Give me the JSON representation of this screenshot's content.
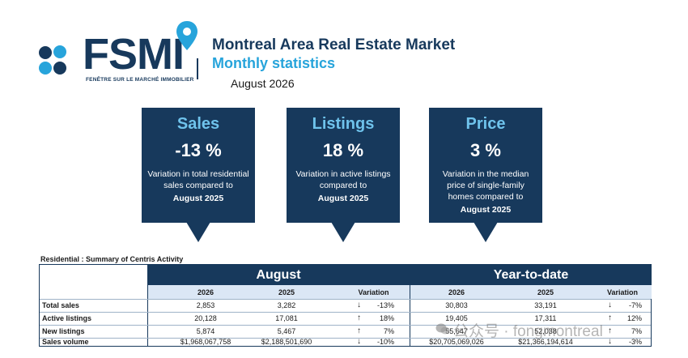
{
  "header": {
    "logo_text": "FSMI",
    "logo_caption": "FENÊTRE SUR LE MARCHÉ IMMOBILIER",
    "title": "Montreal Area Real Estate Market",
    "subtitle": "Monthly statistics",
    "period": "August 2026"
  },
  "colors": {
    "navy": "#17395c",
    "accent_blue": "#27a4db",
    "light_band": "#dbe7f5"
  },
  "kpis": [
    {
      "name": "Sales",
      "value": "-13 %",
      "desc": "Variation in total residential sales compared to",
      "ref": "August 2025"
    },
    {
      "name": "Listings",
      "value": "18 %",
      "desc": "Variation in active listings compared to",
      "ref": "August 2025"
    },
    {
      "name": "Price",
      "value": "3 %",
      "desc": "Variation in the median price of single-family homes compared to",
      "ref": "August 2025"
    }
  ],
  "table": {
    "caption": "Residential : Summary of Centris Activity",
    "group_monthly": "August",
    "group_ytd": "Year-to-date",
    "headers": {
      "current": "2026",
      "previous": "2025",
      "variation": "Variation"
    },
    "rows": [
      {
        "label": "Total sales",
        "m_cur": "2,853",
        "m_prev": "3,282",
        "m_dir": "down",
        "m_var": "-13%",
        "y_cur": "30,803",
        "y_prev": "33,191",
        "y_dir": "down",
        "y_var": "-7%"
      },
      {
        "label": "Active listings",
        "m_cur": "20,128",
        "m_prev": "17,081",
        "m_dir": "up",
        "m_var": "18%",
        "y_cur": "19,405",
        "y_prev": "17,311",
        "y_dir": "up",
        "y_var": "12%"
      },
      {
        "label": "New listings",
        "m_cur": "5,874",
        "m_prev": "5,467",
        "m_dir": "up",
        "m_var": "7%",
        "y_cur": "55,647",
        "y_prev": "52,038",
        "y_dir": "up",
        "y_var": "7%"
      },
      {
        "label": "Sales volume",
        "m_cur": "$1,968,067,758",
        "m_prev": "$2,188,501,690",
        "m_dir": "down",
        "m_var": "-10%",
        "y_cur": "$20,705,069,026",
        "y_prev": "$21,366,194,614",
        "y_dir": "down",
        "y_var": "-3%"
      }
    ]
  },
  "watermark": {
    "text": "公众号 · fongmontreal",
    "icon": "wechat-icon"
  }
}
